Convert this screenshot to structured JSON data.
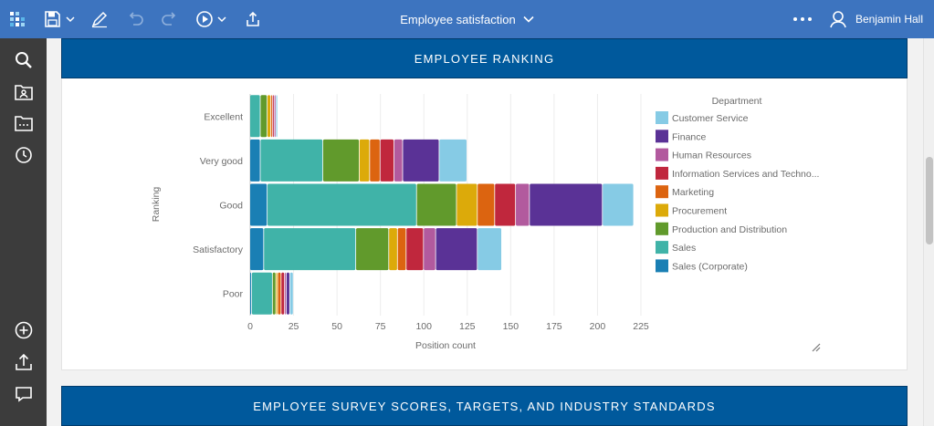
{
  "toolbar": {
    "app_icon": "app-grid-icon",
    "save_icon": "save-icon",
    "edit_icon": "pencil-icon",
    "undo_icon": "undo-icon",
    "redo_icon": "redo-icon",
    "play_icon": "play-icon",
    "share_icon": "share-icon",
    "more_icon": "more-icon",
    "user_icon": "user-icon"
  },
  "header": {
    "title": "Employee satisfaction"
  },
  "user": {
    "name": "Benjamin Hall"
  },
  "sidebar": {
    "top": [
      "search-icon",
      "team-folder-icon",
      "folder-icon",
      "recent-icon"
    ],
    "bottom": [
      "add-icon",
      "upload-icon",
      "comment-icon"
    ]
  },
  "panels": {
    "ranking_title": "EMPLOYEE RANKING",
    "survey_title": "EMPLOYEE SURVEY SCORES, TARGETS, AND INDUSTRY STANDARDS"
  },
  "colors": {
    "Customer Service": "#86cbe5",
    "Finance": "#5a3296",
    "Human Resources": "#b25a9e",
    "Information Services and Techno...": "#c0273d",
    "Marketing": "#dc6410",
    "Procurement": "#dcaa0a",
    "Production and Distribution": "#619a2c",
    "Sales": "#40b3a8",
    "Sales (Corporate)": "#1a7fb4"
  },
  "chart_data": {
    "type": "bar",
    "orientation": "horizontal",
    "stacked": true,
    "title": "",
    "xlabel": "Position count",
    "ylabel": "Ranking",
    "xlim": [
      0,
      225
    ],
    "xticks": [
      0,
      25,
      50,
      75,
      100,
      125,
      150,
      175,
      200,
      225
    ],
    "categories": [
      "Excellent",
      "Very good",
      "Good",
      "Satisfactory",
      "Poor"
    ],
    "legend_title": "Department",
    "series": [
      {
        "name": "Sales (Corporate)",
        "values": [
          0,
          6,
          10,
          8,
          1
        ]
      },
      {
        "name": "Sales",
        "values": [
          6,
          36,
          86,
          53,
          12
        ]
      },
      {
        "name": "Production and Distribution",
        "values": [
          4,
          21,
          23,
          19,
          2
        ]
      },
      {
        "name": "Procurement",
        "values": [
          2,
          6,
          12,
          5,
          1
        ]
      },
      {
        "name": "Marketing",
        "values": [
          1,
          6,
          10,
          5,
          2
        ]
      },
      {
        "name": "Information Services and Techno...",
        "values": [
          1,
          8,
          12,
          10,
          2
        ]
      },
      {
        "name": "Human Resources",
        "values": [
          1,
          5,
          8,
          7,
          1
        ]
      },
      {
        "name": "Finance",
        "values": [
          0,
          21,
          42,
          24,
          2
        ]
      },
      {
        "name": "Customer Service",
        "values": [
          1,
          16,
          18,
          14,
          2
        ]
      }
    ],
    "legend_position": "right",
    "grid": true
  }
}
